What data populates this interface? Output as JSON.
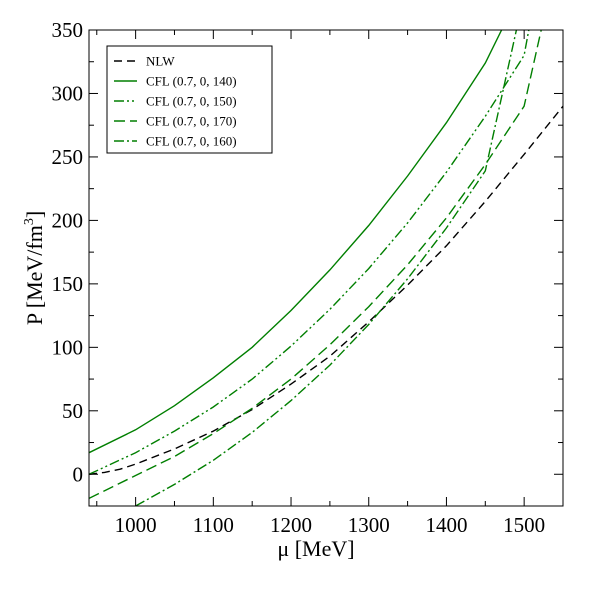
{
  "chart_data": {
    "type": "line",
    "xlabel": "μ [MeV]",
    "ylabel_main": "P [MeV/fm",
    "ylabel_sup": "3",
    "ylabel_end": "]",
    "xlim": [
      940,
      1550
    ],
    "ylim": [
      -25,
      350
    ],
    "xticks": [
      1000,
      1100,
      1200,
      1300,
      1400,
      1500
    ],
    "yticks": [
      0,
      50,
      100,
      150,
      200,
      250,
      300,
      350
    ],
    "legend_position": "top-left",
    "series": [
      {
        "name": "NLW",
        "color": "#000000",
        "dash": "8,5",
        "x": [
          940,
          960,
          980,
          1000,
          1050,
          1100,
          1150,
          1200,
          1250,
          1300,
          1350,
          1400,
          1450,
          1500,
          1550
        ],
        "y": [
          0,
          1.5,
          4,
          8,
          20,
          34,
          51,
          71,
          93,
          120,
          149,
          180,
          215,
          252,
          290
        ]
      },
      {
        "name": "CFL (0.7, 0, 140)",
        "color": "#007f00",
        "dash": "",
        "x": [
          940,
          1000,
          1050,
          1100,
          1150,
          1200,
          1250,
          1300,
          1350,
          1400,
          1450,
          1471
        ],
        "y": [
          17,
          35,
          54,
          76,
          100,
          129,
          161,
          196,
          235,
          277,
          324,
          350
        ]
      },
      {
        "name": "CFL (0.7, 0, 150)",
        "color": "#007f00",
        "dash": "10,3,2,3,2,3",
        "x": [
          940,
          1000,
          1050,
          1100,
          1150,
          1200,
          1250,
          1300,
          1350,
          1400,
          1450,
          1500,
          1506
        ],
        "y": [
          0,
          17,
          34,
          53,
          75,
          101,
          130,
          162,
          198,
          238,
          282,
          330,
          350
        ]
      },
      {
        "name": "CFL (0.7, 0, 170)",
        "color": "#007f00",
        "dash": "11,5",
        "x": [
          940,
          1000,
          1050,
          1100,
          1150,
          1200,
          1250,
          1300,
          1350,
          1400,
          1450,
          1500,
          1522
        ],
        "y": [
          -19,
          -1,
          14,
          32,
          52,
          75,
          102,
          132,
          165,
          202,
          244,
          290,
          350
        ]
      },
      {
        "name": "CFL (0.7, 0, 160)",
        "color": "#007f00",
        "dash": "10,3,2,3",
        "x": [
          1000,
          1050,
          1100,
          1150,
          1200,
          1250,
          1300,
          1350,
          1400,
          1450,
          1490
        ],
        "y": [
          -25,
          -8,
          11,
          33,
          58,
          86,
          118,
          154,
          194,
          239,
          350
        ]
      }
    ]
  }
}
